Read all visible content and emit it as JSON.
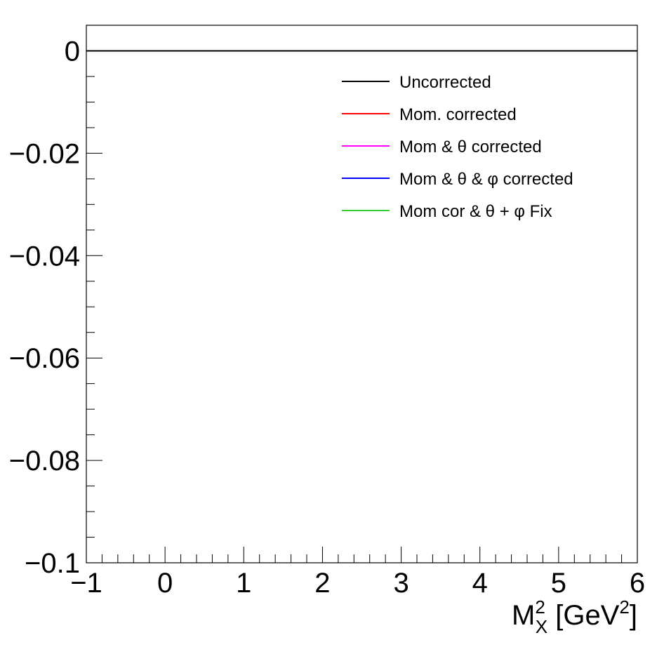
{
  "chart_data": {
    "type": "line",
    "title": "",
    "xlabel": {
      "base": "M",
      "base_sup": "2",
      "base_sub": "X",
      "bracket_open": " [GeV",
      "bracket_sup": "2",
      "bracket_close": "]"
    },
    "ylabel": "",
    "xlim": [
      -1,
      6
    ],
    "ylim": [
      -0.1,
      0.005
    ],
    "x_major_ticks": [
      -1,
      0,
      1,
      2,
      3,
      4,
      5,
      6
    ],
    "x_tick_labels": [
      "−1",
      "0",
      "1",
      "2",
      "3",
      "4",
      "5",
      "6"
    ],
    "y_major_ticks": [
      0,
      -0.02,
      -0.04,
      -0.06,
      -0.08,
      -0.1
    ],
    "y_tick_labels": [
      "0",
      "−0.02",
      "−0.04",
      "−0.06",
      "−0.08",
      "−0.1"
    ],
    "grid": false,
    "legend_position": "top-right",
    "series": [
      {
        "name": "Uncorrected",
        "color": "#000000",
        "x": [
          -1,
          6
        ],
        "y": [
          0,
          0
        ]
      },
      {
        "name": "Mom. corrected",
        "color": "#ff0000",
        "x": [],
        "y": []
      },
      {
        "name": "Mom & θ corrected",
        "color": "#ff00ff",
        "x": [],
        "y": []
      },
      {
        "name": "Mom & θ & φ corrected",
        "color": "#0000ff",
        "x": [],
        "y": []
      },
      {
        "name": "Mom cor & θ + φ Fix",
        "color": "#33cc33",
        "x": [],
        "y": []
      }
    ]
  }
}
